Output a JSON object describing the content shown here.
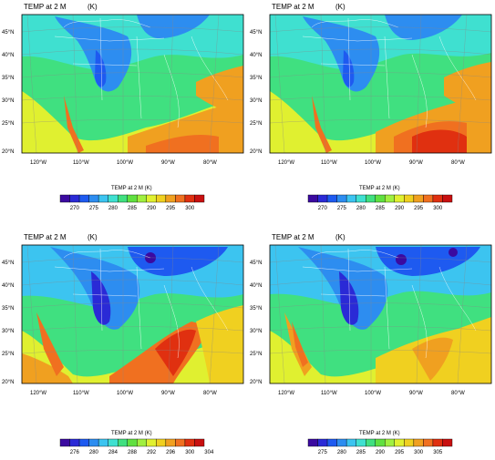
{
  "panels": [
    {
      "title": "TEMP at 2 M",
      "units": "(K)",
      "colorbar_labels": [
        "270",
        "275",
        "280",
        "285",
        "290",
        "295",
        "300"
      ],
      "colorbar_title": "TEMP at 2 M   (K)"
    },
    {
      "title": "TEMP at 2 M",
      "units": "(K)",
      "colorbar_labels": [
        "270",
        "275",
        "280",
        "285",
        "290",
        "295",
        "300"
      ],
      "colorbar_title": "TEMP at 2 M   (K)"
    },
    {
      "title": "TEMP at 2 M",
      "units": "(K)",
      "colorbar_labels": [
        "276",
        "280",
        "284",
        "288",
        "292",
        "296",
        "300",
        "304"
      ],
      "colorbar_title": "TEMP at 2 M   (K)"
    },
    {
      "title": "TEMP at 2 M",
      "units": "(K)",
      "colorbar_labels": [
        "275",
        "280",
        "285",
        "290",
        "295",
        "300",
        "305"
      ],
      "colorbar_title": "TEMP at 2 M   (K)"
    }
  ],
  "lat_labels": [
    "45°N",
    "40°N",
    "35°N",
    "30°N",
    "25°N",
    "20°N"
  ],
  "lon_labels": [
    "120°W",
    "110°W",
    "100°W",
    "90°W",
    "80°W"
  ],
  "colors": [
    "#3b0aa0",
    "#2a2ad6",
    "#1e5af0",
    "#2d8df0",
    "#3cc4f0",
    "#3fe0d0",
    "#40e080",
    "#60e040",
    "#a0f040",
    "#e0f030",
    "#f0d020",
    "#f0a020",
    "#f07020",
    "#e03010",
    "#c81010"
  ]
}
